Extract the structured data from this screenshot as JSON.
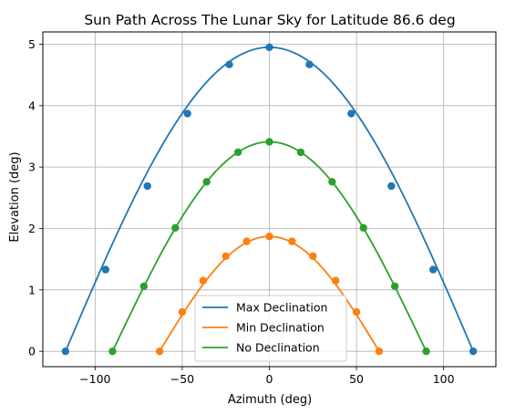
{
  "chart_data": {
    "type": "line",
    "title": "Sun Path Across The Lunar Sky for Latitude 86.6 deg",
    "xlabel": "Azimuth (deg)",
    "ylabel": "Elevation (deg)",
    "xlim": [
      -130,
      130
    ],
    "ylim": [
      -0.25,
      5.2
    ],
    "xticks": [
      -100,
      -50,
      0,
      50,
      100
    ],
    "yticks": [
      0,
      1,
      2,
      3,
      4,
      5
    ],
    "grid": true,
    "legend_position": "lower center",
    "series": [
      {
        "name": "Max Declination",
        "color": "#1f77b4",
        "curve": {
          "peak": 4.95,
          "half_width": 117
        },
        "points": [
          {
            "x": -117,
            "y": 0
          },
          {
            "x": -94,
            "y": 1.33
          },
          {
            "x": -70,
            "y": 2.69
          },
          {
            "x": -47,
            "y": 3.87
          },
          {
            "x": -23,
            "y": 4.67
          },
          {
            "x": 0,
            "y": 4.95
          },
          {
            "x": 23,
            "y": 4.67
          },
          {
            "x": 47,
            "y": 3.87
          },
          {
            "x": 70,
            "y": 2.69
          },
          {
            "x": 94,
            "y": 1.33
          },
          {
            "x": 117,
            "y": 0
          }
        ]
      },
      {
        "name": "Min Declination",
        "color": "#ff7f0e",
        "curve": {
          "peak": 1.87,
          "half_width": 63
        },
        "points": [
          {
            "x": -63,
            "y": 0
          },
          {
            "x": -50,
            "y": 0.64
          },
          {
            "x": -38,
            "y": 1.15
          },
          {
            "x": -25,
            "y": 1.55
          },
          {
            "x": -13,
            "y": 1.79
          },
          {
            "x": 0,
            "y": 1.87
          },
          {
            "x": 13,
            "y": 1.79
          },
          {
            "x": 25,
            "y": 1.55
          },
          {
            "x": 38,
            "y": 1.15
          },
          {
            "x": 50,
            "y": 0.64
          },
          {
            "x": 63,
            "y": 0
          }
        ]
      },
      {
        "name": "No Declination",
        "color": "#2ca02c",
        "curve": {
          "peak": 3.41,
          "half_width": 90
        },
        "points": [
          {
            "x": -90,
            "y": 0
          },
          {
            "x": -72,
            "y": 1.06
          },
          {
            "x": -54,
            "y": 2.01
          },
          {
            "x": -36,
            "y": 2.76
          },
          {
            "x": -18,
            "y": 3.24
          },
          {
            "x": 0,
            "y": 3.41
          },
          {
            "x": 18,
            "y": 3.24
          },
          {
            "x": 36,
            "y": 2.76
          },
          {
            "x": 54,
            "y": 2.01
          },
          {
            "x": 72,
            "y": 1.06
          },
          {
            "x": 90,
            "y": 0
          }
        ]
      }
    ]
  }
}
